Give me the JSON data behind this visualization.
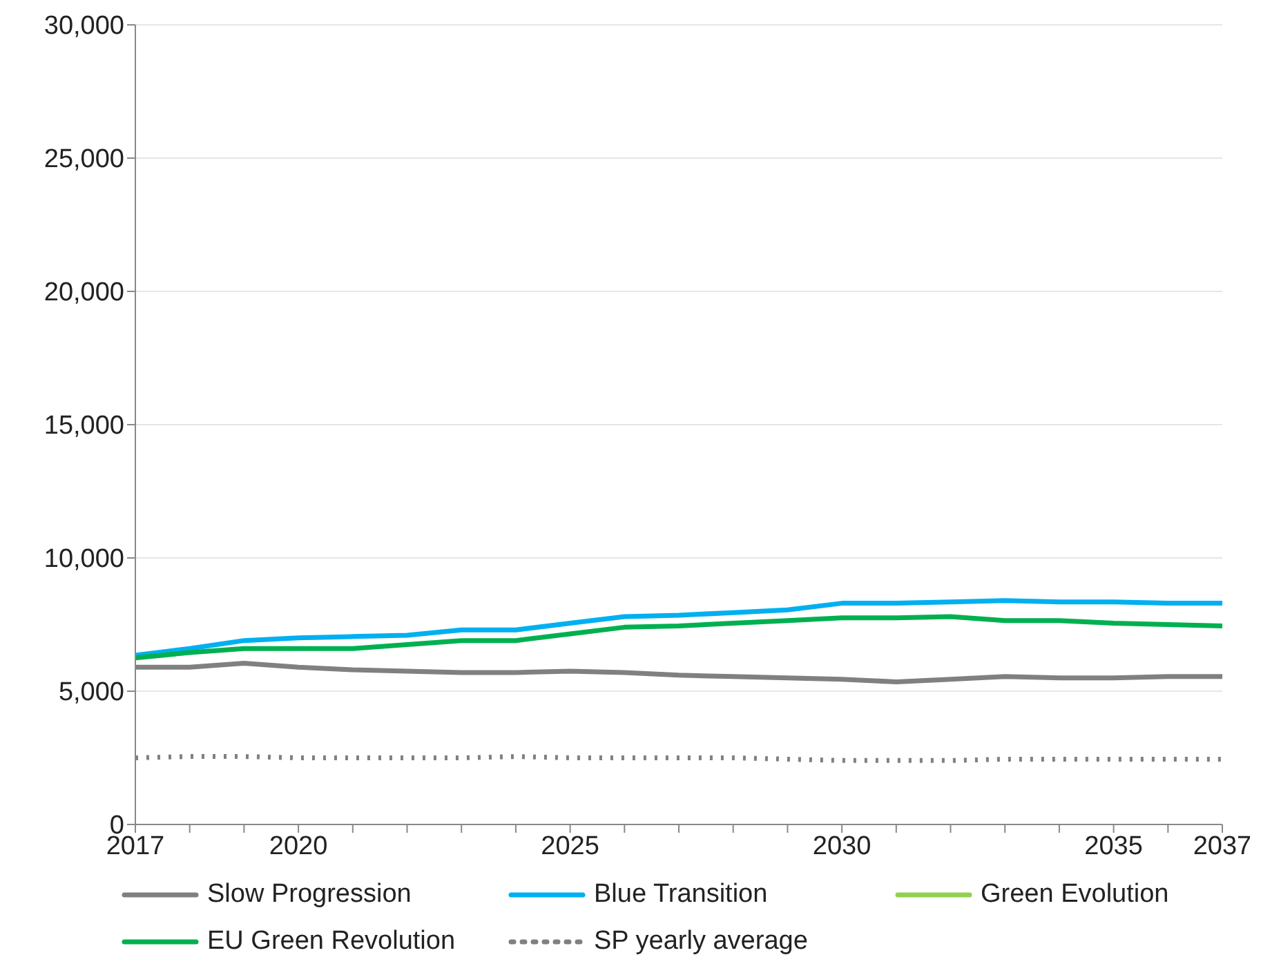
{
  "chart_data": {
    "type": "line",
    "categories": [
      "2017",
      null,
      null,
      "2020",
      null,
      null,
      null,
      null,
      "2025",
      null,
      null,
      null,
      null,
      "2030",
      null,
      null,
      null,
      null,
      "2035",
      null,
      "2037"
    ],
    "series": [
      {
        "name": "Slow Progression",
        "color": "#808080",
        "values": [
          5900,
          5900,
          6050,
          5900,
          5800,
          5750,
          5700,
          5700,
          5750,
          5700,
          5600,
          5550,
          5500,
          5450,
          5350,
          5450,
          5550,
          5500,
          5500,
          5550,
          5550
        ]
      },
      {
        "name": "Blue Transition",
        "color": "#00b0f0",
        "values": [
          6350,
          6600,
          6900,
          7000,
          7050,
          7100,
          7300,
          7300,
          7550,
          7800,
          7850,
          7950,
          8050,
          8300,
          8300,
          8350,
          8400,
          8350,
          8350,
          8300,
          8300
        ]
      },
      {
        "name": "Green Evolution",
        "color": "#92d050",
        "values": [
          null,
          null,
          null,
          null,
          null,
          null,
          null,
          null,
          null,
          null,
          null,
          null,
          null,
          null,
          null,
          null,
          null,
          null,
          null,
          null,
          null
        ]
      },
      {
        "name": "EU Green Revolution",
        "color": "#00b050",
        "values": [
          6250,
          6450,
          6600,
          6600,
          6600,
          6750,
          6900,
          6900,
          7150,
          7400,
          7450,
          7550,
          7650,
          7750,
          7750,
          7800,
          7650,
          7650,
          7550,
          7500,
          7450
        ]
      },
      {
        "name": "SP yearly average",
        "color": "#808080",
        "line_style": "dotted",
        "values": [
          2500,
          2550,
          2550,
          2500,
          2500,
          2500,
          2500,
          2550,
          2500,
          2500,
          2500,
          2500,
          2450,
          2400,
          2400,
          2400,
          2450,
          2450,
          2450,
          2450,
          2450
        ]
      }
    ],
    "ylim": [
      0,
      30000
    ],
    "yticks": [
      0,
      {
        "value": 5000,
        "label": "5,000"
      },
      {
        "value": 10000,
        "label": "10,000"
      },
      {
        "value": 15000,
        "label": "15,000"
      },
      {
        "value": 20000,
        "label": "20,000"
      },
      {
        "value": 25000,
        "label": "25,000"
      },
      {
        "value": 30000,
        "label": "30,000"
      }
    ],
    "grid": "y",
    "legend": "bottom",
    "marker": "none",
    "line_style": "solid"
  }
}
